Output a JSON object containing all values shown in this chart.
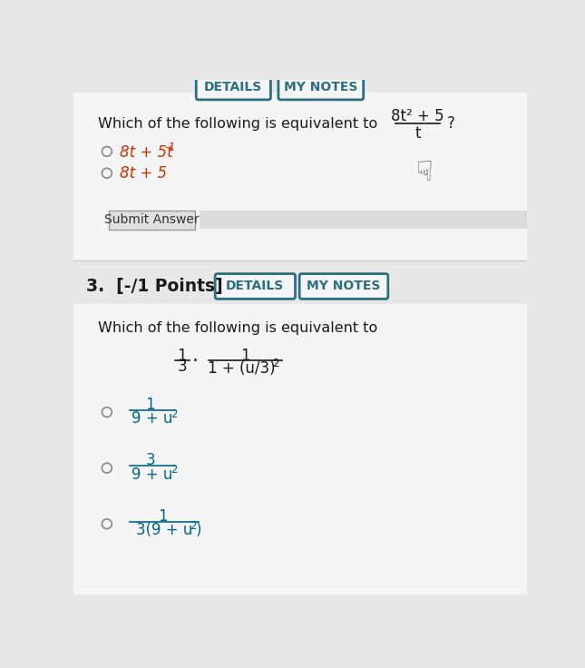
{
  "bg_color": "#e8e8e8",
  "white_bg": "#f5f5f5",
  "text_color_black": "#1a1a1a",
  "text_color_red": "#cc3300",
  "text_color_teal": "#006688",
  "button_border": "#2a7080",
  "button_text_teal": "#2a7080",
  "submit_btn_bg": "#e0e0e0",
  "submit_btn_text": "#333333",
  "circle_color": "#888888",
  "top_btn_bg": "#3d7a90",
  "top_btn_text": "#ffffff",
  "section1": {
    "question": "Which of the following is equivalent to",
    "expr_numerator": "8t² + 5",
    "expr_denominator": "t",
    "opt1_main": "8t + 5t",
    "opt1_sup": "-1",
    "opt2": "8t + 5"
  },
  "section2": {
    "label": "3.  [-/1 Points]",
    "btn1": "DETAILS",
    "btn2": "MY NOTES",
    "question": "Which of the following is equivalent to"
  }
}
